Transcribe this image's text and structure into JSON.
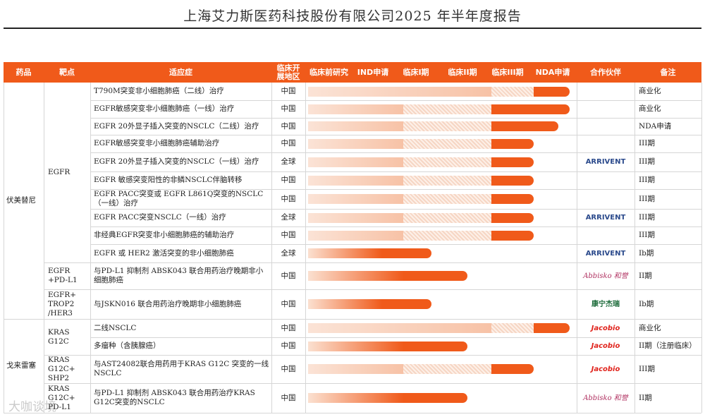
{
  "header": {
    "title": "上海艾力斯医药科技股份有限公司2025 年半年度报告"
  },
  "table": {
    "columns": [
      "药品",
      "靶点",
      "适应症",
      "临床开展地区",
      "临床前研究",
      "IND申请",
      "临床I期",
      "临床II期",
      "临床III期",
      "NDA申请",
      "合作伙伴",
      "备注"
    ],
    "drugs": [
      {
        "name": "伏美替尼",
        "targets": [
          {
            "name": "EGFR",
            "rows": [
              {
                "indication": "T790M突变非小细胞肺癌（二线）治疗",
                "region": "中国",
                "note": "商业化"
              },
              {
                "indication": "EGFR敏感突变非小细胞肺癌（一线）治疗",
                "region": "中国",
                "note": "商业化"
              },
              {
                "indication": "EGFR 20外显子插入突变的NSCLC（二线）治疗",
                "region": "中国",
                "note": "NDA申请"
              },
              {
                "indication": "EGFR敏感突变非小细胞肺癌辅助治疗",
                "region": "中国",
                "note": "III期"
              },
              {
                "indication": "EGFR 20外显子插入突变的NSCLC（一线）治疗",
                "region": "全球",
                "partner": "ARRIVENT",
                "note": "III期"
              },
              {
                "indication": "EGFR 敏感突变阳性的非鳞NSCLC伴脑转移",
                "region": "中国",
                "note": "III期"
              },
              {
                "indication": "EGFR PACC突变或 EGFR L861Q突变的NSCLC（一线）治疗",
                "region": "中国",
                "note": "III期"
              },
              {
                "indication": "EGFR PACC突变NSCLC（一线）治疗",
                "region": "全球",
                "partner": "ARRIVENT",
                "note": "III期"
              },
              {
                "indication": "非经典EGFR突变非小细胞肺癌的辅助治疗",
                "region": "中国",
                "note": "III期"
              },
              {
                "indication": "EGFR 或 HER2 激活突变的非小细胞肺癌",
                "region": "全球",
                "partner": "ARRIVENT",
                "note": "Ib期"
              }
            ]
          },
          {
            "name": "EGFR +PD-L1",
            "rows": [
              {
                "indication": "与PD-L1 抑制剂 ABSK043 联合用药治疗晚期非小细胞肺癌",
                "region": "中国",
                "partner": "Abbisko 和誉",
                "note": "II期"
              }
            ]
          },
          {
            "name": "EGFR+ TROP2 /HER3",
            "rows": [
              {
                "indication": "与JSKN016 联合用药治疗晚期非小细胞肺癌",
                "region": "中国",
                "partner": "康宁杰瑞",
                "note": "Ib期"
              }
            ]
          }
        ]
      },
      {
        "name": "戈来雷塞",
        "targets": [
          {
            "name": "KRAS G12C",
            "rows": [
              {
                "indication": "二线NSCLC",
                "region": "中国",
                "partner": "Jacobio",
                "note": "商业化"
              },
              {
                "indication": "多瘤种（含胰腺癌）",
                "region": "中国",
                "partner": "Jacobio",
                "note": "II期（注册临床）"
              }
            ]
          },
          {
            "name": "KRAS G12C+ SHP2",
            "rows": [
              {
                "indication": "与AST24082联合用药用于KRAS G12C 突变的一线NSCLC",
                "region": "中国",
                "partner": "Jacobio",
                "note": "III期"
              }
            ]
          },
          {
            "name": "KRAS G12C+ PD-L1",
            "rows": [
              {
                "indication": "与PD-L1 抑制剂 ABSK043 联合用药治疗KRAS G12C突变的NSCLC",
                "region": "中国",
                "partner": "Abbisko 和誉",
                "note": "II期"
              }
            ]
          }
        ]
      }
    ]
  },
  "watermark": "大咖谈境"
}
